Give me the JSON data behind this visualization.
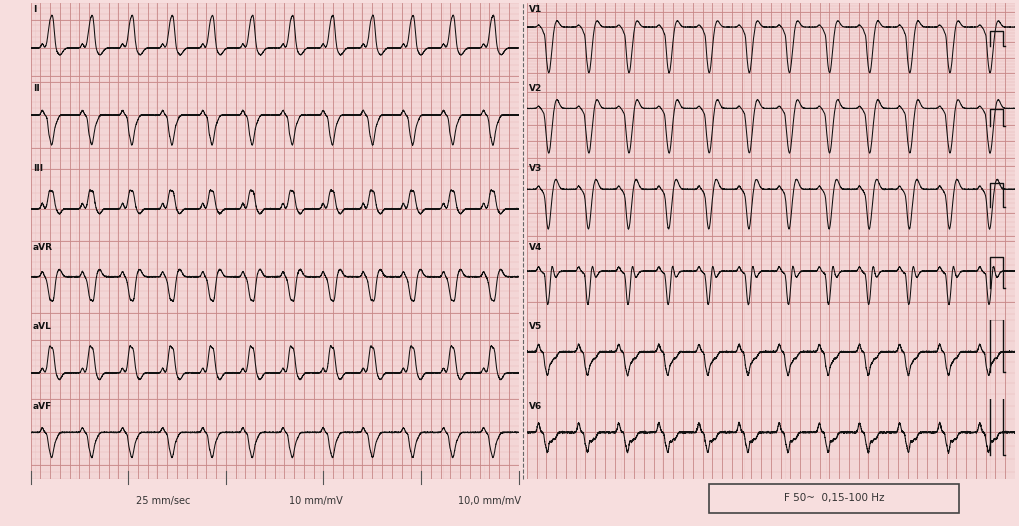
{
  "background_color": "#f7dede",
  "grid_minor_color": "#e8b8b8",
  "grid_major_color": "#c88888",
  "ecg_color": "#111111",
  "label_color": "#111111",
  "fig_width": 10.2,
  "fig_height": 5.26,
  "dpi": 100,
  "left_labels": [
    "I",
    "II",
    "III",
    "aVR",
    "aVL",
    "aVF"
  ],
  "right_labels": [
    "V1",
    "V2",
    "V3",
    "V4",
    "V5",
    "V6"
  ],
  "bottom_texts": [
    "25 mm/sec",
    "10 mm/mV",
    "10,0 mm/mV"
  ],
  "filter_box_text": "F 50~  0,15-100 Hz"
}
